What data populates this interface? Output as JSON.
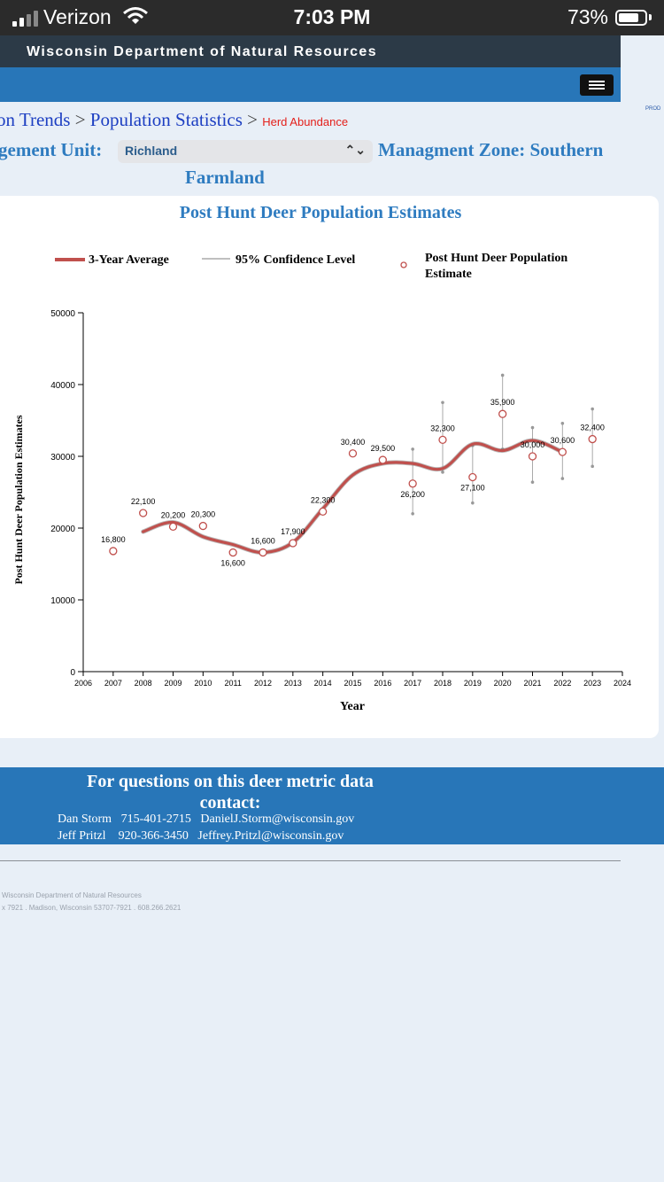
{
  "status_bar": {
    "carrier": "Verizon",
    "time": "7:03 PM",
    "battery": "73%"
  },
  "header": {
    "agency": "Wisconsin Department of Natural Resources",
    "env_tag": "PROD"
  },
  "breadcrumb": {
    "items": [
      "on Trends",
      "Population Statistics"
    ],
    "separator": ">",
    "current": "Herd Abundance"
  },
  "unit": {
    "label": "gement Unit:",
    "selected": "Richland"
  },
  "zone": {
    "label_line1": "Managment Zone: Southern",
    "label_line2": "Farmland"
  },
  "chart_data": {
    "type": "line",
    "title": "Post Hunt Deer Population Estimates",
    "xlabel": "Year",
    "ylabel": "Post Hunt Deer Population Estimates",
    "xlim": [
      2006,
      2024
    ],
    "ylim": [
      0,
      50000
    ],
    "x_ticks": [
      2006,
      2007,
      2008,
      2009,
      2010,
      2011,
      2012,
      2013,
      2014,
      2015,
      2016,
      2017,
      2018,
      2019,
      2020,
      2021,
      2022,
      2023,
      2024
    ],
    "y_ticks": [
      0,
      10000,
      20000,
      30000,
      40000,
      50000
    ],
    "legend_position": "top",
    "series": [
      {
        "name": "3-Year Average",
        "color": "#c0504d",
        "x": [
          2008,
          2009,
          2010,
          2011,
          2012,
          2013,
          2014,
          2015,
          2016,
          2017,
          2018,
          2019,
          2020,
          2021,
          2022
        ],
        "values": [
          19500,
          20800,
          18800,
          17700,
          16600,
          18000,
          22700,
          27400,
          29000,
          29000,
          28300,
          31700,
          30800,
          32200,
          30600
        ]
      },
      {
        "name": "95% Confidence Level",
        "color": "#aaaaaa",
        "x": [
          2017,
          2018,
          2019,
          2020,
          2021,
          2022,
          2023
        ],
        "low": [
          22000,
          27800,
          23500,
          31000,
          26400,
          26900,
          28600
        ],
        "high": [
          31000,
          37500,
          31500,
          41300,
          34000,
          34600,
          36600
        ]
      },
      {
        "name": "Post Hunt Deer Population Estimate",
        "color": "#c0504d",
        "x": [
          2007,
          2008,
          2009,
          2010,
          2011,
          2012,
          2013,
          2014,
          2015,
          2016,
          2017,
          2018,
          2019,
          2020,
          2021,
          2022,
          2023
        ],
        "values": [
          16800,
          22100,
          20200,
          20300,
          16600,
          16600,
          17900,
          22300,
          30400,
          29500,
          26200,
          32300,
          27100,
          35900,
          30000,
          30600,
          32400
        ],
        "labels": [
          "16,800",
          "22,100",
          "20,200",
          "20,300",
          "16,600",
          "16,600",
          "17,900",
          "22,300",
          "30,400",
          "29,500",
          "26,200",
          "32,300",
          "27,100",
          "35,900",
          "30,000",
          "30,600",
          "32,400"
        ]
      }
    ]
  },
  "contact": {
    "heading_line1": "For questions on this deer metric data",
    "heading_line2": "contact:",
    "people": [
      {
        "name": "Dan Storm",
        "phone": "715-401-2715",
        "email": "DanielJ.Storm@wisconsin.gov"
      },
      {
        "name": "Jeff Pritzl",
        "phone": "920-366-3450",
        "email": "Jeffrey.Pritzl@wisconsin.gov"
      }
    ]
  },
  "footer": {
    "line1": "Wisconsin Department of Natural Resources",
    "line2": "x 7921 . Madison, Wisconsin 53707-7921 . 608.266.2621"
  }
}
